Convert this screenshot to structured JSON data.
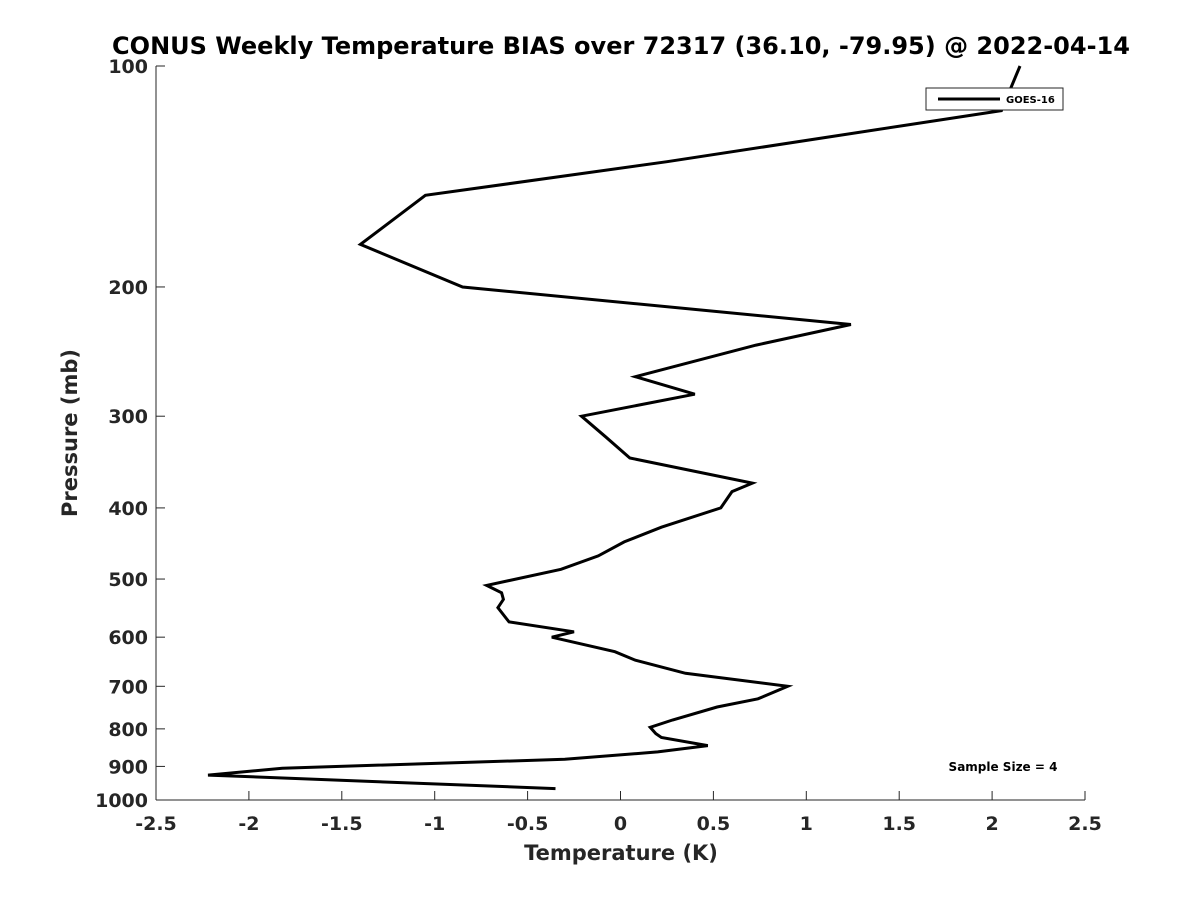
{
  "chart_data": {
    "type": "line",
    "title": "CONUS Weekly Temperature BIAS over 72317 (36.10, -79.95) @ 2022-04-14",
    "xlabel": "Temperature (K)",
    "ylabel": "Pressure (mb)",
    "xlim": [
      -2.5,
      2.5
    ],
    "ylim": [
      1000,
      100
    ],
    "y_scale": "log",
    "y_reversed": true,
    "grid": false,
    "x_ticks": [
      "-2.5",
      "-2",
      "-1.5",
      "-1",
      "-0.5",
      "0",
      "0.5",
      "1",
      "1.5",
      "2",
      "2.5"
    ],
    "y_ticks": [
      "100",
      "200",
      "300",
      "400",
      "500",
      "600",
      "700",
      "800",
      "900",
      "1000"
    ],
    "legend": {
      "position": "top-right",
      "entries": [
        "GOES-16"
      ]
    },
    "annotation": "Sample Size = 4",
    "line_color": "#000000",
    "series": [
      {
        "name": "GOES-16",
        "x": [
          2.15,
          2.05,
          0.25,
          -1.05,
          -1.4,
          -0.85,
          1.24,
          0.73,
          0.08,
          0.4,
          -0.21,
          -0.08,
          0.05,
          0.71,
          0.6,
          0.54,
          0.22,
          0.02,
          -0.12,
          -0.32,
          -0.72,
          -0.64,
          -0.63,
          -0.66,
          -0.6,
          -0.25,
          -0.37,
          -0.03,
          0.08,
          0.35,
          0.9,
          0.74,
          0.52,
          0.28,
          0.16,
          0.19,
          0.22,
          0.47,
          0.2,
          -0.3,
          -1.82,
          -2.22,
          -0.35
        ],
        "y": [
          100,
          115,
          135,
          150,
          175,
          200,
          225,
          240,
          265,
          280,
          300,
          320,
          342,
          370,
          380,
          400,
          425,
          445,
          465,
          485,
          510,
          522,
          533,
          547,
          572,
          590,
          600,
          628,
          645,
          672,
          700,
          728,
          747,
          778,
          796,
          812,
          822,
          843,
          860,
          880,
          905,
          925,
          965
        ]
      }
    ]
  }
}
